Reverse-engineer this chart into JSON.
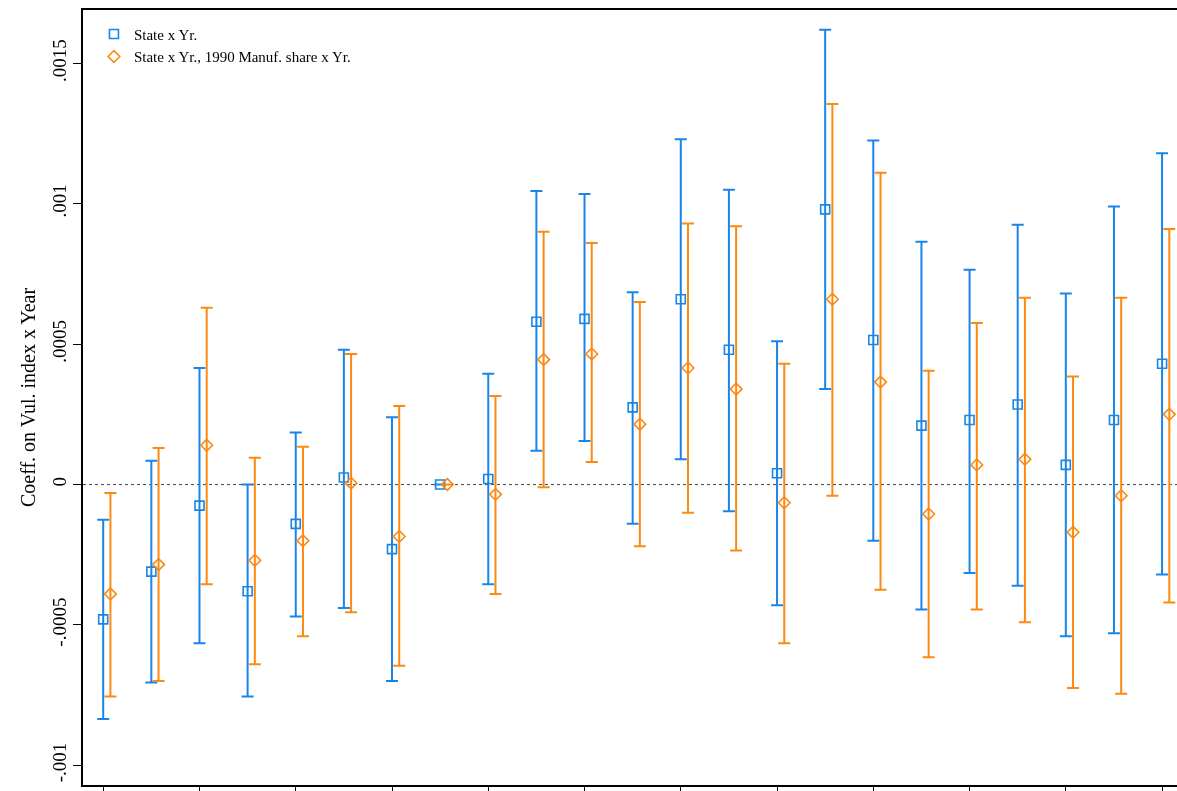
{
  "chart_data": {
    "type": "scatter",
    "ylabel": "Coeff. on Vul. index x Year",
    "categories": [
      null,
      null,
      null,
      null,
      null,
      null,
      null,
      null,
      null,
      null,
      null,
      null,
      null,
      null,
      null,
      null,
      null,
      null,
      null,
      null,
      null,
      null,
      null
    ],
    "series": [
      {
        "name": "State x Yr.",
        "color": "#1a85e8",
        "marker": "square",
        "values": [
          -0.00048,
          -0.00031,
          -7.5e-05,
          -0.00038,
          -0.00014,
          2.5e-05,
          -0.00023,
          0,
          2e-05,
          0.00058,
          0.00059,
          0.000275,
          0.00066,
          0.00048,
          4e-05,
          0.00098,
          0.000515,
          0.00021,
          0.00023,
          0.000285,
          7e-05,
          0.00023,
          0.00043
        ],
        "errors": [
          [
            -0.000835,
            -0.000125
          ],
          [
            -0.000705,
            8.5e-05
          ],
          [
            -0.000565,
            0.000415
          ],
          [
            -0.000755,
            0
          ],
          [
            -0.00047,
            0.000185
          ],
          [
            -0.00044,
            0.00048
          ],
          [
            -0.0007,
            0.00024
          ],
          null,
          [
            -0.000355,
            0.000395
          ],
          [
            0.00012,
            0.001045
          ],
          [
            0.000155,
            0.001035
          ],
          [
            -0.00014,
            0.000685
          ],
          [
            9e-05,
            0.00123
          ],
          [
            -9.5e-05,
            0.00105
          ],
          [
            -0.00043,
            0.00051
          ],
          [
            0.00034,
            0.00162
          ],
          [
            -0.0002,
            0.001225
          ],
          [
            -0.000445,
            0.000865
          ],
          [
            -0.000315,
            0.000765
          ],
          [
            -0.00036,
            0.000925
          ],
          [
            -0.00054,
            0.00068
          ],
          [
            -0.00053,
            0.00099
          ],
          [
            -0.00032,
            0.00118
          ]
        ]
      },
      {
        "name": "State x Yr., 1990 Manuf. share x Yr.",
        "color": "#fb8a12",
        "marker": "diamond",
        "values": [
          -0.00039,
          -0.000285,
          0.00014,
          -0.00027,
          -0.0002,
          5e-06,
          -0.000185,
          0,
          -3.5e-05,
          0.000445,
          0.000465,
          0.000215,
          0.000415,
          0.00034,
          -6.5e-05,
          0.00066,
          0.000365,
          -0.000105,
          7e-05,
          9e-05,
          -0.00017,
          -4e-05,
          0.00025
        ],
        "errors": [
          [
            -0.000755,
            -3e-05
          ],
          [
            -0.0007,
            0.00013
          ],
          [
            -0.000355,
            0.00063
          ],
          [
            -0.00064,
            9.5e-05
          ],
          [
            -0.00054,
            0.000135
          ],
          [
            -0.000455,
            0.000465
          ],
          [
            -0.000645,
            0.00028
          ],
          null,
          [
            -0.00039,
            0.000315
          ],
          [
            -1e-05,
            0.0009
          ],
          [
            8e-05,
            0.00086
          ],
          [
            -0.00022,
            0.00065
          ],
          [
            -0.0001,
            0.00093
          ],
          [
            -0.000235,
            0.00092
          ],
          [
            -0.000565,
            0.00043
          ],
          [
            -4e-05,
            0.001355
          ],
          [
            -0.000375,
            0.00111
          ],
          [
            -0.000615,
            0.000405
          ],
          [
            -0.000445,
            0.000575
          ],
          [
            -0.00049,
            0.000665
          ],
          [
            -0.000725,
            0.000385
          ],
          [
            -0.000745,
            0.000665
          ],
          [
            -0.00042,
            0.00091
          ]
        ]
      }
    ],
    "ylim": [
      -0.00107,
      0.00169
    ],
    "yticks": [
      {
        "value": -0.001,
        "label": "-.001"
      },
      {
        "value": -0.0005,
        "label": "-.0005"
      },
      0,
      {
        "value": 0.0005,
        "label": ".0005"
      },
      {
        "value": 0.001,
        "label": ".001"
      },
      {
        "value": 0.0015,
        "label": ".0015"
      }
    ],
    "ref_lines": [
      {
        "axis": "y",
        "value": 0,
        "color": "#444444",
        "line_style": "dotted"
      }
    ],
    "legend": "top left",
    "grid": false
  }
}
